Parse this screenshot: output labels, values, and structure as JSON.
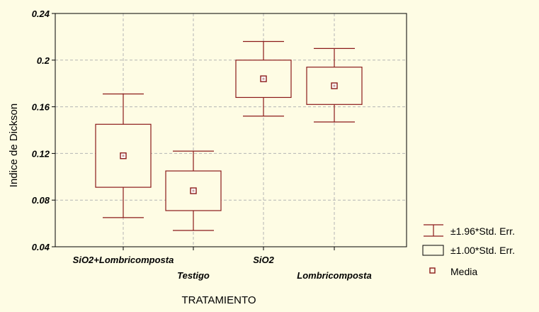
{
  "chart_data": {
    "type": "box",
    "title": "",
    "xlabel": "TRATAMIENTO",
    "ylabel": "Indice de Dickson",
    "ylim": [
      0.04,
      0.24
    ],
    "yticks": [
      "0.04",
      "0.08",
      "0.12",
      "0.16",
      "0.2",
      "0.24"
    ],
    "ytick_values": [
      0.04,
      0.08,
      0.12,
      0.16,
      0.2,
      0.24
    ],
    "grid": true,
    "categories": [
      "SiO2+Lombricomposta",
      "Testigo",
      "SiO2",
      "Lombricomposta"
    ],
    "series": [
      {
        "name": "Media",
        "values": [
          0.118,
          0.088,
          0.184,
          0.178
        ]
      },
      {
        "name": "±1.00*Std. Err.",
        "lower": [
          0.091,
          0.071,
          0.168,
          0.162
        ],
        "upper": [
          0.145,
          0.105,
          0.2,
          0.194
        ]
      },
      {
        "name": "±1.96*Std. Err.",
        "lower": [
          0.065,
          0.054,
          0.152,
          0.147
        ],
        "upper": [
          0.171,
          0.122,
          0.216,
          0.21
        ]
      }
    ],
    "legend": {
      "placement": "bottom-right",
      "entries": [
        "±1.96*Std. Err.",
        "±1.00*Std. Err.",
        "Media"
      ]
    },
    "colors": {
      "line": "#8b1a1a",
      "box_fill": "#fefce4",
      "grid": "#b4b4b4",
      "background": "#fefce4"
    }
  }
}
